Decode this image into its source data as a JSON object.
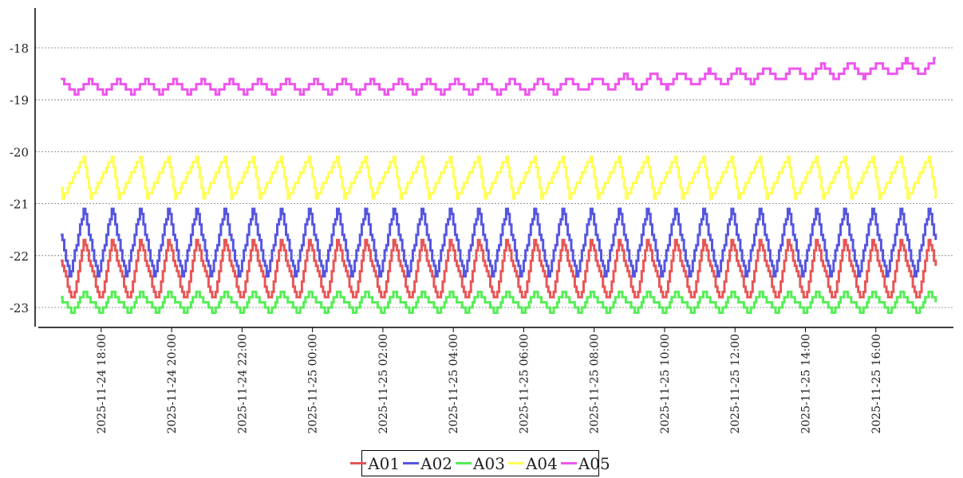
{
  "chart_data": {
    "type": "line",
    "title": "",
    "xlabel": "",
    "ylabel": "",
    "x_range": [
      "2025-11-24 16:40",
      "2025-11-25 17:45"
    ],
    "x_ticks": [
      "2025-11-24 18:00",
      "2025-11-24 20:00",
      "2025-11-24 22:00",
      "2025-11-25 00:00",
      "2025-11-25 02:00",
      "2025-11-25 04:00",
      "2025-11-25 06:00",
      "2025-11-25 08:00",
      "2025-11-25 10:00",
      "2025-11-25 12:00",
      "2025-11-25 14:00",
      "2025-11-25 16:00"
    ],
    "y_ticks": [
      "-18",
      "-19",
      "-20",
      "-21",
      "-22",
      "-23"
    ],
    "ylim": [
      -23.4,
      -17.2
    ],
    "grid": "horizontal dashed",
    "legend_position": "bottom-center",
    "cycle_minutes": 48,
    "series": [
      {
        "name": "A01",
        "color": "#e85555",
        "min": -22.9,
        "max": -21.7,
        "peak_fraction": 0.4,
        "points": [
          [
            "2025-11-24 16:51",
            -22.7
          ],
          [
            "2025-11-24 17:10",
            -21.7
          ],
          [
            "2025-11-24 17:38",
            -22.9
          ],
          [
            "2025-11-25 17:30",
            -21.7
          ],
          [
            "2025-11-25 17:42",
            -22.8
          ]
        ]
      },
      {
        "name": "A02",
        "color": "#5555e0",
        "min": -22.4,
        "max": -21.1,
        "peak_fraction": 0.5,
        "points": [
          [
            "2025-11-24 16:51",
            -22.3
          ],
          [
            "2025-11-24 17:15",
            -21.1
          ],
          [
            "2025-11-24 17:40",
            -22.4
          ],
          [
            "2025-11-25 17:24",
            -21.1
          ],
          [
            "2025-11-25 17:42",
            -22.3
          ]
        ]
      },
      {
        "name": "A03",
        "color": "#55ee55",
        "min": -23.1,
        "max": -22.7,
        "peak_fraction": 0.4,
        "points": [
          [
            "2025-11-24 16:51",
            -23.0
          ],
          [
            "2025-11-24 17:10",
            -22.6
          ],
          [
            "2025-11-24 17:38",
            -23.1
          ],
          [
            "2025-11-25 17:30",
            -22.7
          ],
          [
            "2025-11-25 17:42",
            -23.1
          ]
        ]
      },
      {
        "name": "A04",
        "color": "#ffff55",
        "min": -20.9,
        "max": -20.1,
        "peak_fraction": 0.75,
        "points": [
          [
            "2025-11-24 16:51",
            -20.9
          ],
          [
            "2025-11-24 17:25",
            -20.1
          ],
          [
            "2025-11-24 17:39",
            -20.9
          ],
          [
            "2025-11-25 16:50",
            -20.0
          ],
          [
            "2025-11-25 17:42",
            -20.7
          ]
        ]
      },
      {
        "name": "A05",
        "color": "#ee55ee",
        "min_start": -18.9,
        "max_start": -18.6,
        "min_end": -18.5,
        "max_end": -18.2,
        "peak_fraction": 0.5,
        "points": [
          [
            "2025-11-24 16:51",
            -18.8
          ],
          [
            "2025-11-24 17:00",
            -19.0
          ],
          [
            "2025-11-25 08:00",
            -18.8
          ],
          [
            "2025-11-25 16:00",
            -18.2
          ],
          [
            "2025-11-25 17:42",
            -18.5
          ]
        ]
      }
    ]
  },
  "legend": {
    "items": [
      {
        "label": "A01",
        "color": "#e85555"
      },
      {
        "label": "A02",
        "color": "#5555e0"
      },
      {
        "label": "A03",
        "color": "#55ee55"
      },
      {
        "label": "A04",
        "color": "#ffff55"
      },
      {
        "label": "A05",
        "color": "#ee55ee"
      }
    ]
  }
}
